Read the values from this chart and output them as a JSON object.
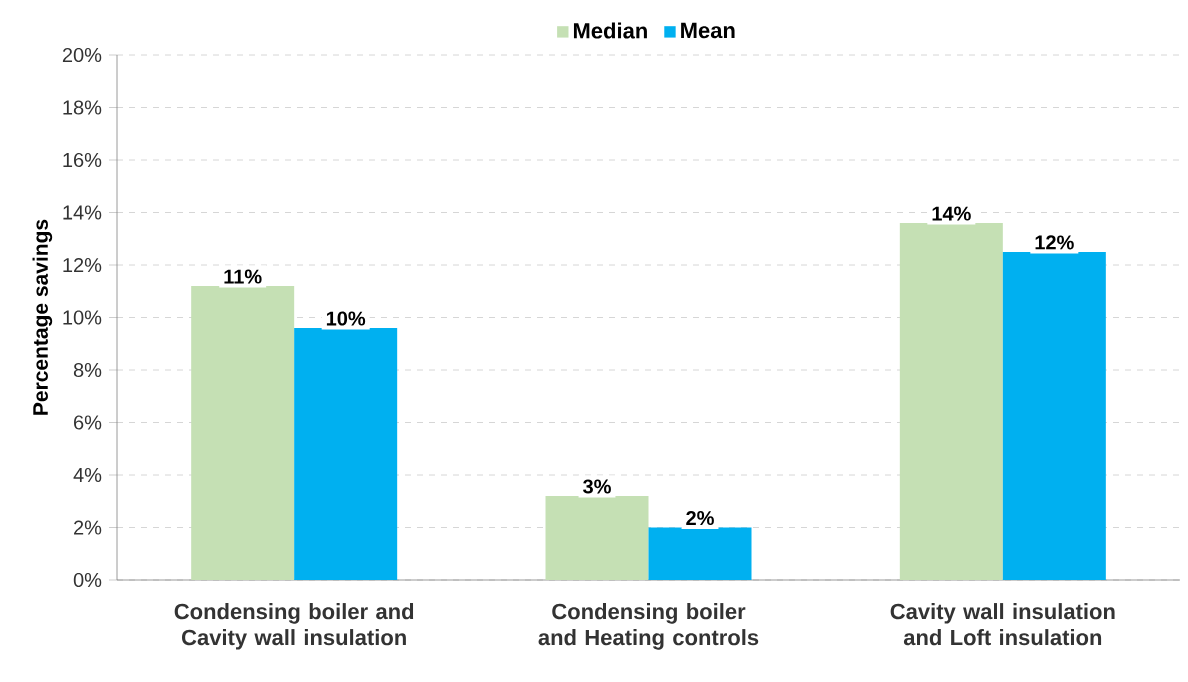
{
  "chart_data": {
    "type": "bar",
    "ylabel": "Percentage savings",
    "categories": [
      "Condensing boiler and Cavity wall insulation",
      "Condensing boiler and Heating controls",
      "Cavity wall insulation and Loft insulation"
    ],
    "series": [
      {
        "name": "Median",
        "color": "#c5e0b4",
        "values": [
          11.2,
          3.2,
          13.6
        ],
        "value_labels": [
          "11%",
          "3%",
          "14%"
        ]
      },
      {
        "name": "Mean",
        "color": "#00b0f0",
        "values": [
          9.6,
          2.0,
          12.5
        ],
        "value_labels": [
          "10%",
          "2%",
          "12%"
        ]
      }
    ],
    "ylim": [
      0,
      20
    ],
    "yticks": [
      {
        "value": 0,
        "label": "0%"
      },
      {
        "value": 2,
        "label": "2%"
      },
      {
        "value": 4,
        "label": "4%"
      },
      {
        "value": 6,
        "label": "6%"
      },
      {
        "value": 8,
        "label": "8%"
      },
      {
        "value": 10,
        "label": "10%"
      },
      {
        "value": 12,
        "label": "12%"
      },
      {
        "value": 14,
        "label": "14%"
      },
      {
        "value": 16,
        "label": "16%"
      },
      {
        "value": 18,
        "label": "18%"
      },
      {
        "value": 20,
        "label": "20%"
      }
    ],
    "grid": "y",
    "legend": "top"
  }
}
